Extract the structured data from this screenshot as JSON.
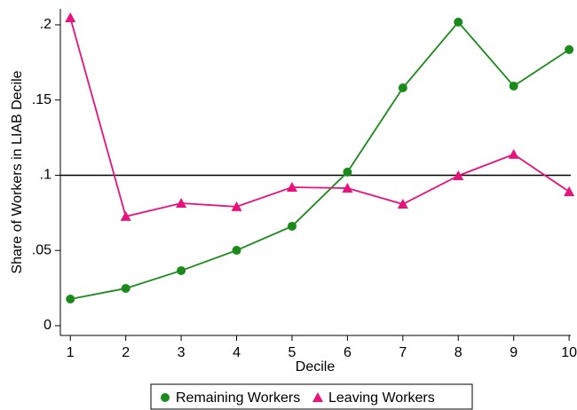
{
  "chart_data": {
    "type": "line",
    "y_label": "Share of Workers in LIAB Decile",
    "x_label": "Decile",
    "x": [
      1,
      2,
      3,
      4,
      5,
      6,
      7,
      8,
      9,
      10
    ],
    "series": [
      {
        "name": "Remaining Workers",
        "color": "#1a8a1a",
        "marker": "circle",
        "values": [
          0.0177,
          0.0248,
          0.0366,
          0.0501,
          0.0661,
          0.1021,
          0.1581,
          0.2018,
          0.1593,
          0.1835
        ]
      },
      {
        "name": "Leaving Workers",
        "color": "#e8127e",
        "marker": "triangle",
        "values": [
          0.2047,
          0.0726,
          0.0814,
          0.0791,
          0.092,
          0.0914,
          0.0808,
          0.0997,
          0.1139,
          0.0891
        ]
      }
    ],
    "hline": 0.1,
    "xlim": [
      0.82,
      10.03
    ],
    "ylim": [
      -0.0065,
      0.2106
    ],
    "xticks": [
      1,
      2,
      3,
      4,
      5,
      6,
      7,
      8,
      9,
      10
    ],
    "yticks": [
      0,
      {
        "value": 0.05,
        "label": ".05"
      },
      {
        "value": 0.1,
        "label": ".1"
      },
      {
        "value": 0.15,
        "label": ".15"
      },
      {
        "value": 0.2,
        "label": ".2"
      }
    ],
    "legend": "bottom"
  }
}
